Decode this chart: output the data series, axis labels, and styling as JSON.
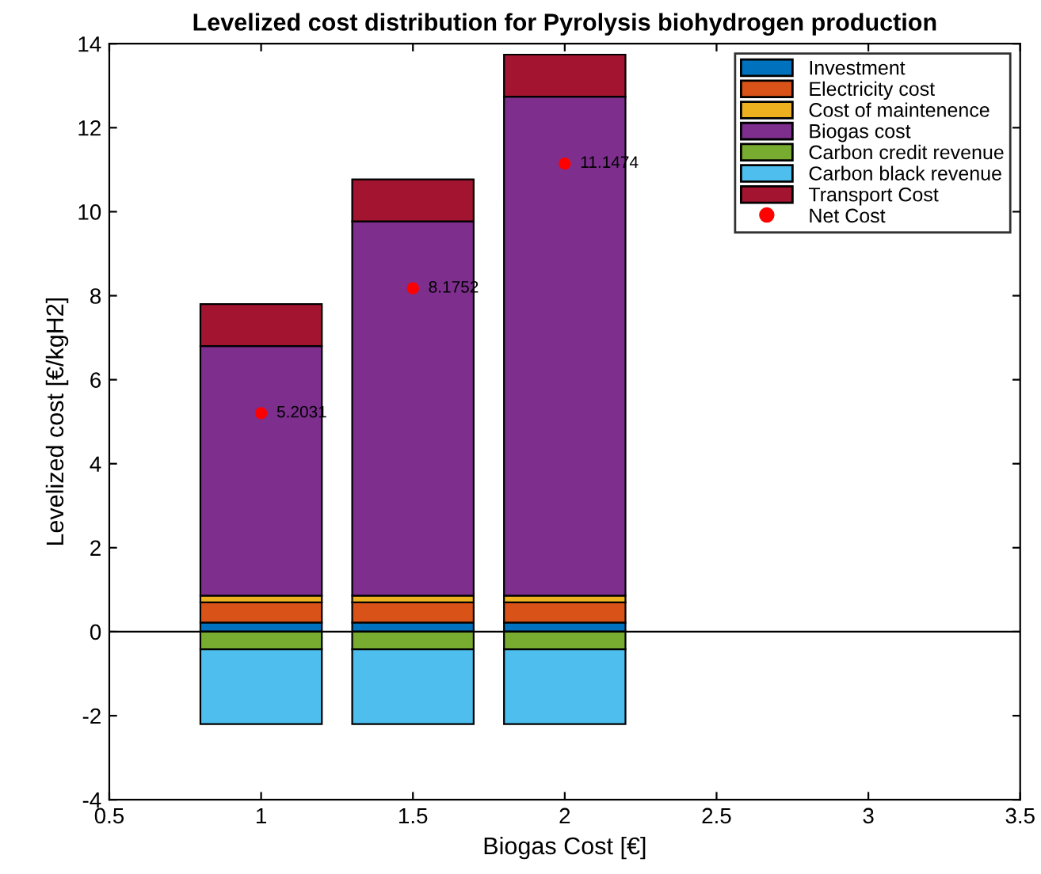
{
  "chart_data": {
    "type": "bar",
    "stacked": true,
    "title": "Levelized cost distribution for Pyrolysis biohydrogen production",
    "xlabel": "Biogas Cost [€]",
    "ylabel": "Levelized cost [€/kgH2]",
    "x": [
      1,
      1.5,
      2
    ],
    "series": [
      {
        "name": "Investment",
        "color": "#0072bd",
        "values": [
          0.22,
          0.22,
          0.22
        ]
      },
      {
        "name": "Electricity cost",
        "color": "#d95319",
        "values": [
          0.48,
          0.48,
          0.48
        ]
      },
      {
        "name": "Cost of maintenence",
        "color": "#edb120",
        "values": [
          0.16,
          0.16,
          0.16
        ]
      },
      {
        "name": "Biogas cost",
        "color": "#7e2f8e",
        "values": [
          5.94,
          8.91,
          11.88
        ]
      },
      {
        "name": "Carbon credit revenue",
        "color": "#77ac30",
        "values": [
          -0.42,
          -0.42,
          -0.42
        ]
      },
      {
        "name": "Carbon black revenue",
        "color": "#4dbeee",
        "values": [
          -1.78,
          -1.78,
          -1.78
        ]
      },
      {
        "name": "Transport Cost",
        "color": "#a2142f",
        "values": [
          1.0,
          1.0,
          1.0
        ]
      },
      {
        "name": "Net Cost",
        "type": "scatter",
        "color": "#ff0000",
        "marker": "circle",
        "values": [
          5.2031,
          8.1752,
          11.1474
        ],
        "value_labels": [
          "5.2031",
          "8.1752",
          "11.1474"
        ]
      }
    ],
    "xlim": [
      0.5,
      3.5
    ],
    "xticks": [
      0.5,
      1,
      1.5,
      2,
      2.5,
      3,
      3.5
    ],
    "ylim": [
      -4,
      14
    ],
    "yticks": [
      -4,
      -2,
      0,
      2,
      4,
      6,
      8,
      10,
      12,
      14
    ],
    "ref_lines": [
      {
        "axis": "y",
        "value": 0,
        "color": "#000000"
      }
    ],
    "grid": false,
    "legend": "top right"
  }
}
